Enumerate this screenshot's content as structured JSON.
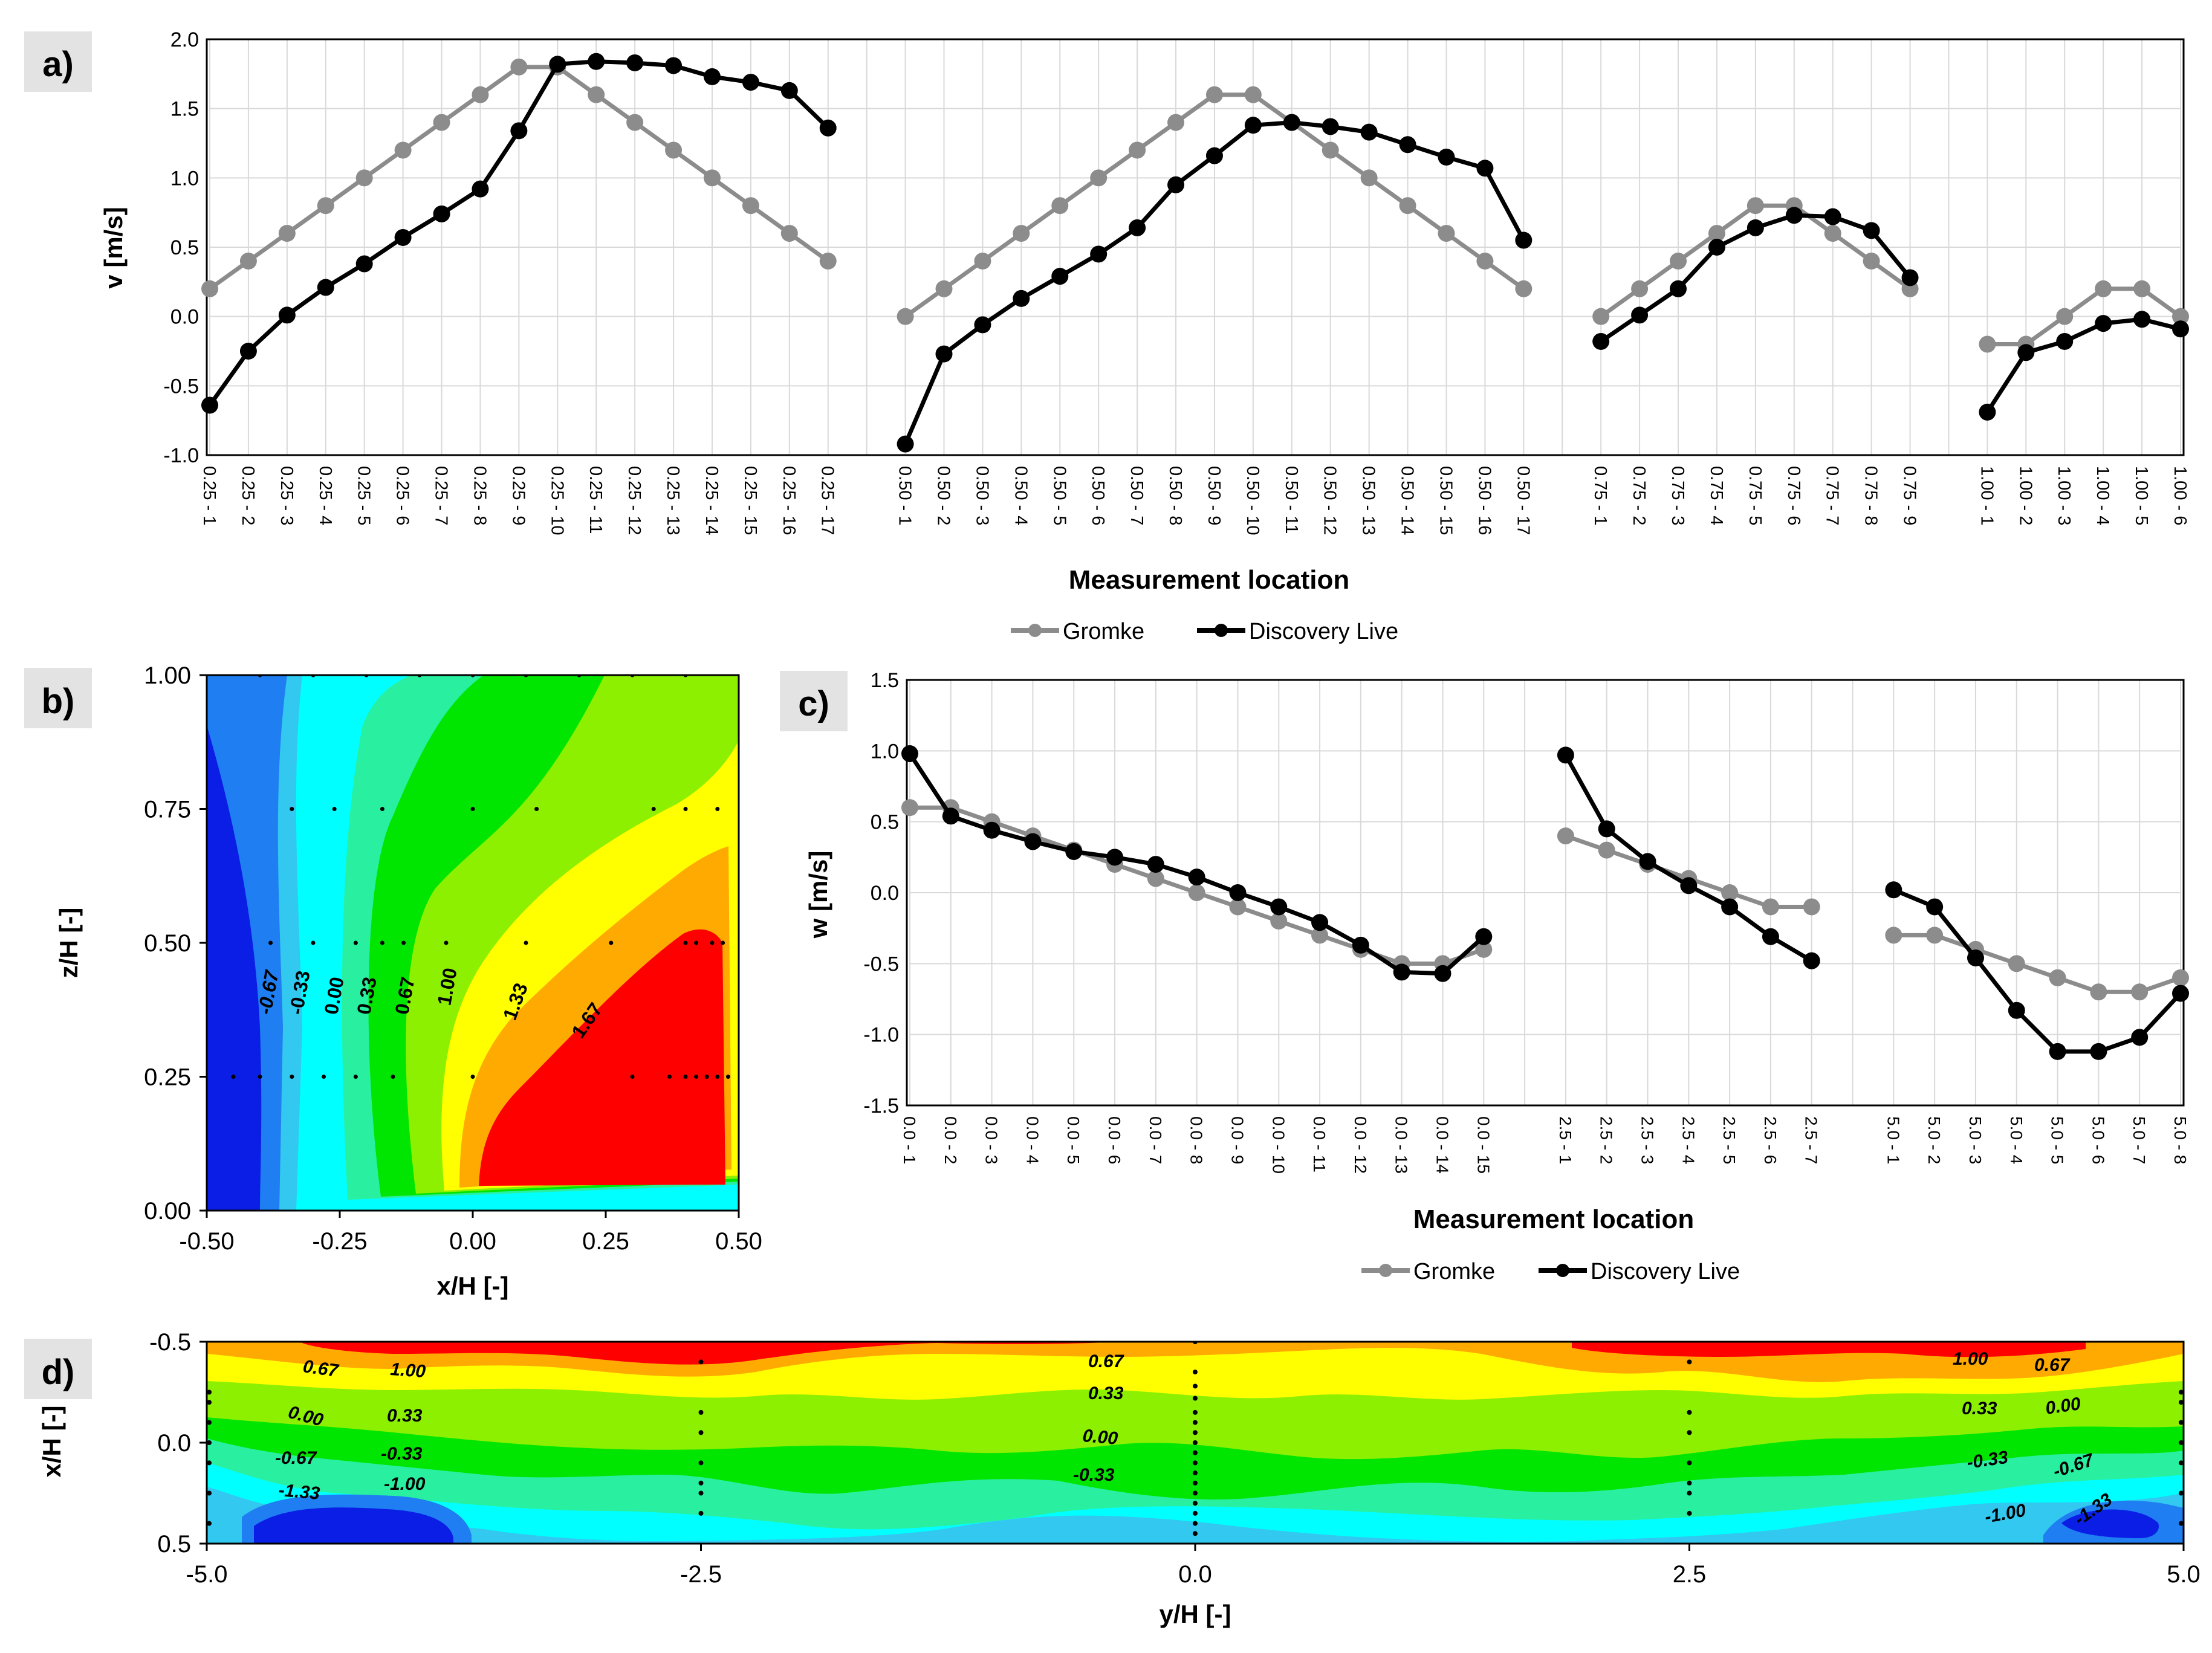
{
  "figure": {
    "domain": "Chart"
  },
  "chart_data": [
    {
      "panel": "a)",
      "type": "line",
      "ylabel": "v [m/s]",
      "xlabel": "Measurement location",
      "ylim": [
        -1.0,
        2.0
      ],
      "yticks": [
        "-1.0",
        "-0.5",
        "0.0",
        "0.5",
        "1.0",
        "1.5",
        "2.0"
      ],
      "grid": true,
      "legend": [
        "Gromke",
        "Discovery Live"
      ],
      "groups": [
        {
          "categories": [
            "0.25 - 1",
            "0.25 - 2",
            "0.25 - 3",
            "0.25 - 4",
            "0.25 - 5",
            "0.25 - 6",
            "0.25 - 7",
            "0.25 - 8",
            "0.25 - 9",
            "0.25 - 10",
            "0.25 - 11",
            "0.25 - 12",
            "0.25 - 13",
            "0.25 - 14",
            "0.25 - 15",
            "0.25 - 16",
            "0.25 - 17"
          ],
          "series": [
            {
              "name": "Gromke",
              "values": [
                0.2,
                0.4,
                0.6,
                0.8,
                1.0,
                1.2,
                1.4,
                1.6,
                1.8,
                1.8,
                1.6,
                1.4,
                1.2,
                1.0,
                0.8,
                0.6,
                0.4
              ]
            },
            {
              "name": "Discovery Live",
              "values": [
                -0.64,
                -0.25,
                0.01,
                0.21,
                0.38,
                0.57,
                0.74,
                0.92,
                1.34,
                1.82,
                1.84,
                1.83,
                1.81,
                1.73,
                1.69,
                1.63,
                1.36
              ]
            }
          ]
        },
        {
          "categories": [
            "0.50 - 1",
            "0.50 - 2",
            "0.50 - 3",
            "0.50 - 4",
            "0.50 - 5",
            "0.50 - 6",
            "0.50 - 7",
            "0.50 - 8",
            "0.50 - 9",
            "0.50 - 10",
            "0.50 - 11",
            "0.50 - 12",
            "0.50 - 13",
            "0.50 - 14",
            "0.50 - 15",
            "0.50 - 16",
            "0.50 - 17"
          ],
          "series": [
            {
              "name": "Gromke",
              "values": [
                0.0,
                0.2,
                0.4,
                0.6,
                0.8,
                1.0,
                1.2,
                1.4,
                1.6,
                1.6,
                1.4,
                1.2,
                1.0,
                0.8,
                0.6,
                0.4,
                0.2
              ]
            },
            {
              "name": "Discovery Live",
              "values": [
                -0.92,
                -0.27,
                -0.06,
                0.13,
                0.29,
                0.45,
                0.64,
                0.95,
                1.16,
                1.38,
                1.4,
                1.37,
                1.33,
                1.24,
                1.15,
                1.07,
                0.55
              ]
            }
          ]
        },
        {
          "categories": [
            "0.75 - 1",
            "0.75 - 2",
            "0.75 - 3",
            "0.75 - 4",
            "0.75 - 5",
            "0.75 - 6",
            "0.75 - 7",
            "0.75 - 8",
            "0.75 - 9"
          ],
          "series": [
            {
              "name": "Gromke",
              "values": [
                0.0,
                0.2,
                0.4,
                0.6,
                0.8,
                0.8,
                0.6,
                0.4,
                0.2
              ]
            },
            {
              "name": "Discovery Live",
              "values": [
                -0.18,
                0.01,
                0.2,
                0.5,
                0.64,
                0.73,
                0.72,
                0.62,
                0.28
              ]
            }
          ]
        },
        {
          "categories": [
            "1.00 - 1",
            "1.00 - 2",
            "1.00 - 3",
            "1.00 - 4",
            "1.00 - 5",
            "1.00 - 6"
          ],
          "series": [
            {
              "name": "Gromke",
              "values": [
                -0.2,
                -0.2,
                0.0,
                0.2,
                0.2,
                0.0
              ]
            },
            {
              "name": "Discovery Live",
              "values": [
                -0.69,
                -0.26,
                -0.18,
                -0.05,
                -0.02,
                -0.09
              ]
            }
          ]
        }
      ]
    },
    {
      "panel": "b)",
      "type": "heatmap",
      "xlabel": "x/H [-]",
      "ylabel": "z/H [-]",
      "xlim": [
        -0.5,
        0.5
      ],
      "ylim": [
        0.0,
        1.0
      ],
      "xticks": [
        "-0.50",
        "-0.25",
        "0.00",
        "0.25",
        "0.50"
      ],
      "yticks": [
        "0.00",
        "0.25",
        "0.50",
        "0.75",
        "1.00"
      ],
      "contour_labels": [
        "-0.67",
        "-0.33",
        "0.00",
        "0.33",
        "0.67",
        "1.00",
        "1.33",
        "1.67"
      ]
    },
    {
      "panel": "c)",
      "type": "line",
      "ylabel": "w [m/s]",
      "xlabel": "Measurement location",
      "ylim": [
        -1.5,
        1.5
      ],
      "yticks": [
        "-1.5",
        "-1.0",
        "-0.5",
        "0.0",
        "0.5",
        "1.0",
        "1.5"
      ],
      "grid": true,
      "legend": [
        "Gromke",
        "Discovery Live"
      ],
      "groups": [
        {
          "categories": [
            "0.0 - 1",
            "0.0 - 2",
            "0.0 - 3",
            "0.0 - 4",
            "0.0 - 5",
            "0.0 - 6",
            "0.0 - 7",
            "0.0 - 8",
            "0.0 - 9",
            "0.0 - 10",
            "0.0 - 11",
            "0.0 - 12",
            "0.0 - 13",
            "0.0 - 14",
            "0.0 - 15"
          ],
          "series": [
            {
              "name": "Gromke",
              "values": [
                0.6,
                0.6,
                0.5,
                0.4,
                0.3,
                0.2,
                0.1,
                0.0,
                -0.1,
                -0.2,
                -0.3,
                -0.4,
                -0.5,
                -0.5,
                -0.4
              ]
            },
            {
              "name": "Discovery Live",
              "values": [
                0.98,
                0.54,
                0.44,
                0.36,
                0.29,
                0.25,
                0.2,
                0.11,
                0.0,
                -0.1,
                -0.21,
                -0.37,
                -0.56,
                -0.57,
                -0.31
              ]
            }
          ]
        },
        {
          "categories": [
            "2.5 - 1",
            "2.5 - 2",
            "2.5 - 3",
            "2.5 - 4",
            "2.5 - 5",
            "2.5 - 6",
            "2.5 - 7"
          ],
          "series": [
            {
              "name": "Gromke",
              "values": [
                0.4,
                0.3,
                0.2,
                0.1,
                0.0,
                -0.1,
                -0.1
              ]
            },
            {
              "name": "Discovery Live",
              "values": [
                0.97,
                0.45,
                0.22,
                0.05,
                -0.1,
                -0.31,
                -0.48
              ]
            }
          ]
        },
        {
          "categories": [
            "5.0 - 1",
            "5.0 - 2",
            "5.0 - 3",
            "5.0 - 4",
            "5.0 - 5",
            "5.0 - 6",
            "5.0 - 7",
            "5.0 - 8"
          ],
          "series": [
            {
              "name": "Gromke",
              "values": [
                -0.3,
                -0.3,
                -0.4,
                -0.5,
                -0.6,
                -0.7,
                -0.7,
                -0.6
              ]
            },
            {
              "name": "Discovery Live",
              "values": [
                0.02,
                -0.1,
                -0.46,
                -0.83,
                -1.12,
                -1.12,
                -1.02,
                -0.71
              ]
            }
          ]
        }
      ]
    },
    {
      "panel": "d)",
      "type": "heatmap",
      "xlabel": "y/H [-]",
      "ylabel": "x/H [-]",
      "xlim": [
        -5.0,
        5.0
      ],
      "ylim": [
        -0.5,
        0.5
      ],
      "xticks": [
        "-5.0",
        "-2.5",
        "0.0",
        "2.5",
        "5.0"
      ],
      "yticks": [
        "-0.5",
        "0.0",
        "0.5"
      ],
      "contour_labels_left": [
        "0.67",
        "1.00",
        "0.33",
        "0.00",
        "-0.67",
        "-0.33",
        "-1.33",
        "-1.00"
      ],
      "contour_labels_center": [
        "0.67",
        "0.33",
        "0.00",
        "-0.33"
      ],
      "contour_labels_right": [
        "1.00",
        "0.67",
        "0.33",
        "0.00",
        "-0.33",
        "-0.67",
        "-1.00",
        "-1.33"
      ]
    }
  ],
  "colors": {
    "gromke": "#8c8c8c",
    "discovery": "#000000",
    "grid": "#d9d9d9",
    "panel_label_bg": "#e3e3e3",
    "c_neg133": "#0a1ee6",
    "c_neg100": "#1f7ef2",
    "c_neg067": "#32c8f0",
    "c_neg033": "#00ffff",
    "c_000": "#28f0a0",
    "c_033": "#00e600",
    "c_067": "#8cf000",
    "c_100": "#ffff00",
    "c_133": "#ffaa00",
    "c_167": "#ff0000"
  }
}
